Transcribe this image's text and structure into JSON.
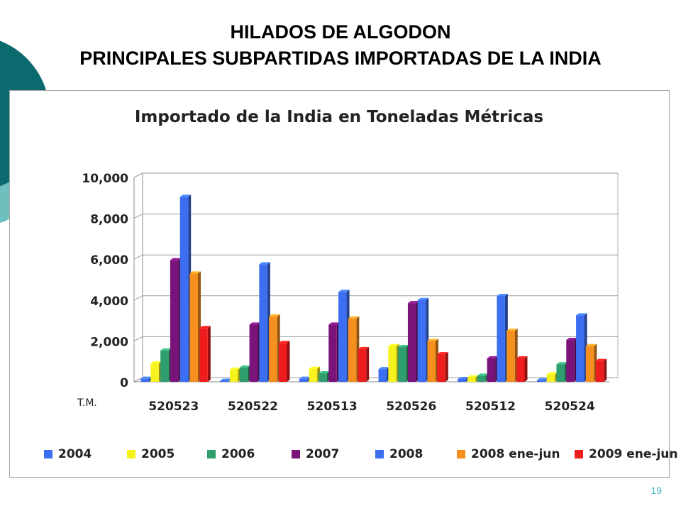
{
  "slide": {
    "title_line1": "HILADOS DE ALGODON",
    "title_line2": "PRINCIPALES SUBPARTIDAS IMPORTADAS DE LA INDIA",
    "page_number": "19"
  },
  "colors": {
    "deco_dark": "#0b6a6e",
    "deco_light": "#6fbfbf",
    "grid": "#9a9a9a",
    "axis": "#8c8c8c"
  },
  "chart_data": {
    "type": "bar",
    "title": "Importado de la India en Toneladas Métricas",
    "unit_label": "T.M.",
    "ylim": [
      0,
      10000
    ],
    "y_ticks": [
      "0",
      "2,000",
      "4,000",
      "6,000",
      "8,000",
      "10,000"
    ],
    "grid": true,
    "legend_position": "bottom",
    "categories": [
      "520523",
      "520522",
      "520513",
      "520526",
      "520512",
      "520524"
    ],
    "series": [
      {
        "name": "2004",
        "color": "#3b6ef0",
        "values": [
          150,
          50,
          150,
          620,
          140,
          80
        ]
      },
      {
        "name": "2005",
        "color": "#f7f21e",
        "values": [
          900,
          600,
          640,
          1750,
          220,
          370
        ]
      },
      {
        "name": "2006",
        "color": "#2f9e6e",
        "values": [
          1530,
          700,
          420,
          1700,
          300,
          860
        ]
      },
      {
        "name": "2007",
        "color": "#7a137a",
        "values": [
          5950,
          2800,
          2800,
          3850,
          1150,
          2050
        ]
      },
      {
        "name": "2008",
        "color": "#3b6ef0",
        "values": [
          9050,
          5750,
          4400,
          4000,
          4200,
          3250
        ]
      },
      {
        "name": "2008 ene-jun",
        "color": "#f5901e",
        "values": [
          5300,
          3200,
          3100,
          2000,
          2500,
          1750
        ]
      },
      {
        "name": "2009 ene-jun",
        "color": "#ee1c1c",
        "values": [
          2630,
          1900,
          1600,
          1350,
          1150,
          1020
        ]
      }
    ]
  }
}
